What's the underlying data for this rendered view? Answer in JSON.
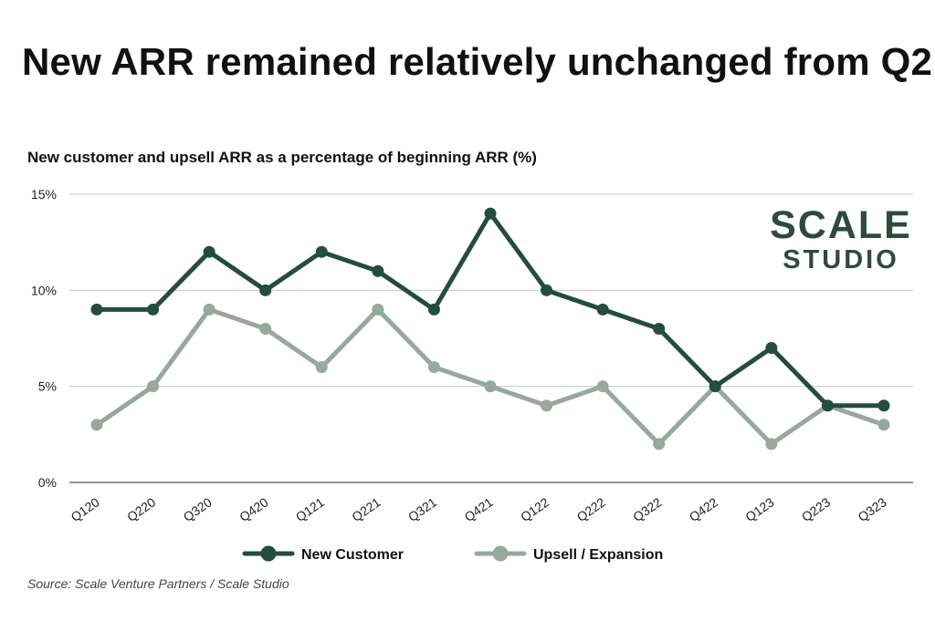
{
  "title": "New ARR remained relatively unchanged from Q2",
  "subtitle": "New customer and upsell ARR as a percentage of beginning ARR (%)",
  "source": "Source: Scale Venture Partners / Scale Studio",
  "logo": {
    "line1": "SCALE",
    "line2": "STUDIO"
  },
  "chart_data": {
    "type": "line",
    "categories": [
      "Q120",
      "Q220",
      "Q320",
      "Q420",
      "Q121",
      "Q221",
      "Q321",
      "Q421",
      "Q122",
      "Q222",
      "Q322",
      "Q422",
      "Q123",
      "Q223",
      "Q323"
    ],
    "series": [
      {
        "name": "New Customer",
        "color": "#234d3e",
        "values": [
          9,
          9,
          12,
          10,
          12,
          11,
          9,
          14,
          10,
          9,
          8,
          5,
          7,
          4,
          4
        ]
      },
      {
        "name": "Upsell / Expansion",
        "color": "#97a89f",
        "values": [
          3,
          5,
          9,
          8,
          6,
          9,
          6,
          5,
          4,
          5,
          2,
          5,
          2,
          4,
          3
        ]
      }
    ],
    "yticks": [
      0,
      5,
      10,
      15
    ],
    "ytick_labels": [
      "0%",
      "5%",
      "10%",
      "15%"
    ],
    "ylim": [
      0,
      15
    ],
    "grid": true,
    "legend_position": "bottom"
  }
}
